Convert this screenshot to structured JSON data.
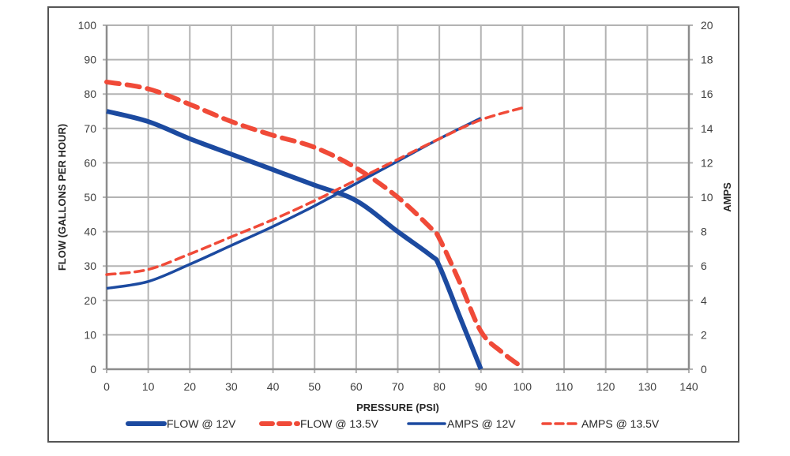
{
  "chart_data": {
    "type": "line",
    "title": "",
    "xlabel": "PRESSURE (PSI)",
    "ylabel": "FLOW (GALLONS PER HOUR)",
    "y2label": "AMPS",
    "xlim": [
      0,
      140
    ],
    "ylim": [
      0,
      100
    ],
    "y2lim": [
      0,
      20
    ],
    "xticks": [
      "0",
      "10",
      "20",
      "30",
      "40",
      "50",
      "60",
      "70",
      "80",
      "90",
      "100",
      "110",
      "120",
      "130",
      "140"
    ],
    "yticks": [
      "0",
      "10",
      "20",
      "30",
      "40",
      "50",
      "60",
      "70",
      "80",
      "90",
      "100"
    ],
    "y2ticks": [
      "0",
      "2",
      "4",
      "6",
      "8",
      "10",
      "12",
      "14",
      "16",
      "18",
      "20"
    ],
    "grid": true,
    "legend_position": "bottom",
    "series": [
      {
        "name": "FLOW @ 12V",
        "axis": "left",
        "color": "#1c4aa0",
        "style": "solid-thick",
        "points": [
          [
            0,
            75
          ],
          [
            10,
            72
          ],
          [
            20,
            67
          ],
          [
            30,
            62.5
          ],
          [
            40,
            58
          ],
          [
            50,
            53.5
          ],
          [
            60,
            49
          ],
          [
            70,
            40
          ],
          [
            78,
            33
          ],
          [
            80,
            30
          ],
          [
            85,
            15
          ],
          [
            90,
            0
          ]
        ]
      },
      {
        "name": "FLOW @ 13.5V",
        "axis": "left",
        "color": "#f04a38",
        "style": "dashed-thick",
        "points": [
          [
            0,
            83.5
          ],
          [
            10,
            81.5
          ],
          [
            20,
            77
          ],
          [
            30,
            72
          ],
          [
            40,
            68
          ],
          [
            50,
            64.5
          ],
          [
            60,
            58.5
          ],
          [
            70,
            50
          ],
          [
            78,
            41
          ],
          [
            80,
            38
          ],
          [
            85,
            25
          ],
          [
            90,
            11
          ],
          [
            95,
            5
          ],
          [
            100,
            0.5
          ]
        ]
      },
      {
        "name": "AMPS @ 12V",
        "axis": "right",
        "color": "#1c4aa0",
        "style": "solid-thin",
        "points": [
          [
            0,
            4.7
          ],
          [
            10,
            5.1
          ],
          [
            20,
            6.1
          ],
          [
            30,
            7.2
          ],
          [
            40,
            8.3
          ],
          [
            50,
            9.5
          ],
          [
            60,
            10.8
          ],
          [
            70,
            12.1
          ],
          [
            80,
            13.4
          ],
          [
            90,
            14.6
          ]
        ]
      },
      {
        "name": "AMPS @ 13.5V",
        "axis": "right",
        "color": "#f04a38",
        "style": "dashed-thin",
        "points": [
          [
            0,
            5.5
          ],
          [
            10,
            5.8
          ],
          [
            20,
            6.7
          ],
          [
            30,
            7.7
          ],
          [
            40,
            8.7
          ],
          [
            50,
            9.8
          ],
          [
            60,
            11
          ],
          [
            70,
            12.2
          ],
          [
            80,
            13.4
          ],
          [
            90,
            14.5
          ],
          [
            100,
            15.2
          ]
        ]
      }
    ]
  }
}
